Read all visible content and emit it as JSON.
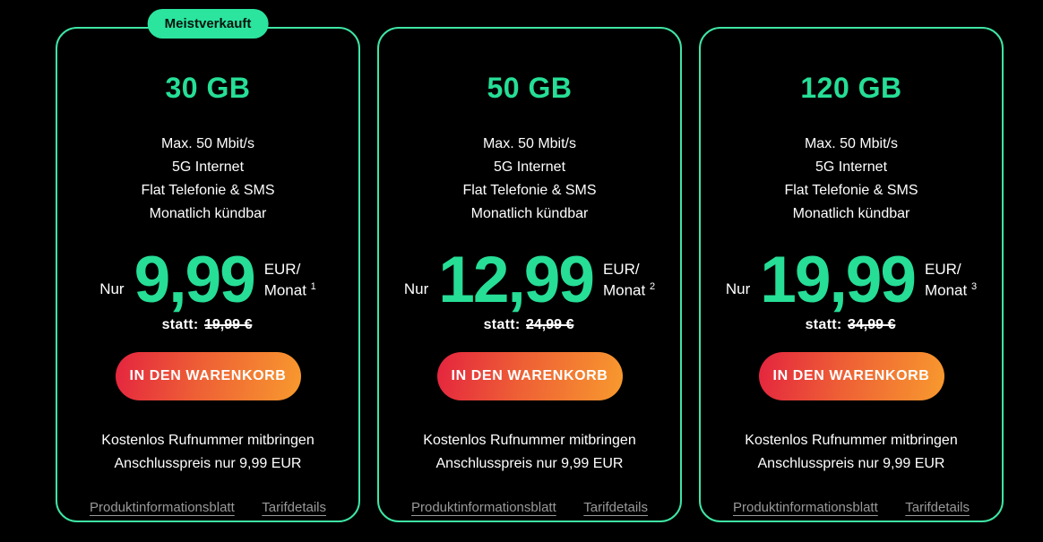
{
  "colors": {
    "background": "#000000",
    "accent_green": "#26de96",
    "card_border_green": "#3fe5a4",
    "badge_background": "#2be49e",
    "badge_text": "#07140e",
    "button_gradient_start": "#e4243f",
    "button_gradient_end": "#f89a2e",
    "body_text": "#ffffff",
    "link_gray": "#999999"
  },
  "cards": [
    {
      "badge": "Meistverkauft",
      "title": "30 GB",
      "features": [
        "Max. 50 Mbit/s",
        "5G Internet",
        "Flat Telefonie & SMS",
        "Monatlich kündbar"
      ],
      "price_prefix": "Nur",
      "price": "9,99",
      "unit_line1": "EUR/",
      "unit_line2": "Monat",
      "footnote": "1",
      "statt_label": "statt:",
      "old_price": "19,99 €",
      "button_label": "IN DEN WARENKORB",
      "note1": "Kostenlos Rufnummer mitbringen",
      "note2": "Anschlusspreis nur 9,99 EUR",
      "links": [
        "Produktinformationsblatt",
        "Tarifdetails"
      ]
    },
    {
      "title": "50 GB",
      "features": [
        "Max. 50 Mbit/s",
        "5G Internet",
        "Flat Telefonie & SMS",
        "Monatlich kündbar"
      ],
      "price_prefix": "Nur",
      "price": "12,99",
      "unit_line1": "EUR/",
      "unit_line2": "Monat",
      "footnote": "2",
      "statt_label": "statt:",
      "old_price": "24,99 €",
      "button_label": "IN DEN WARENKORB",
      "note1": "Kostenlos Rufnummer mitbringen",
      "note2": "Anschlusspreis nur 9,99 EUR",
      "links": [
        "Produktinformationsblatt",
        "Tarifdetails"
      ]
    },
    {
      "title": "120 GB",
      "features": [
        "Max. 50 Mbit/s",
        "5G Internet",
        "Flat Telefonie & SMS",
        "Monatlich kündbar"
      ],
      "price_prefix": "Nur",
      "price": "19,99",
      "unit_line1": "EUR/",
      "unit_line2": "Monat",
      "footnote": "3",
      "statt_label": "statt:",
      "old_price": "34,99 €",
      "button_label": "IN DEN WARENKORB",
      "note1": "Kostenlos Rufnummer mitbringen",
      "note2": "Anschlusspreis nur 9,99 EUR",
      "links": [
        "Produktinformationsblatt",
        "Tarifdetails"
      ]
    }
  ]
}
